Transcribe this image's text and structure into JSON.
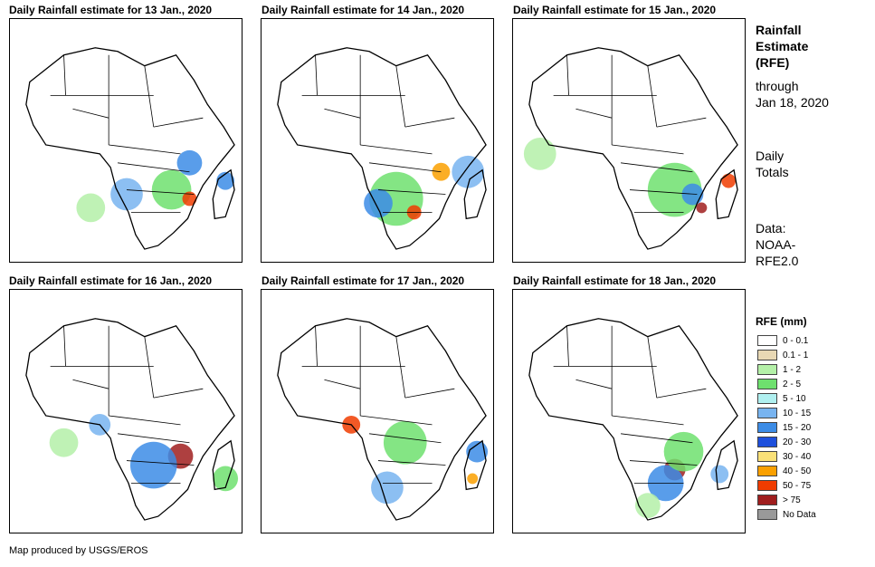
{
  "panels": [
    {
      "title": "Daily Rainfall estimate for 13 Jan., 2020"
    },
    {
      "title": "Daily Rainfall estimate for 14 Jan., 2020"
    },
    {
      "title": "Daily Rainfall estimate for 15 Jan., 2020"
    },
    {
      "title": "Daily Rainfall estimate for 16 Jan., 2020"
    },
    {
      "title": "Daily Rainfall estimate for 17 Jan., 2020"
    },
    {
      "title": "Daily Rainfall estimate for 18 Jan., 2020"
    }
  ],
  "sidebar": {
    "heading_line1": "Rainfall",
    "heading_line2": "Estimate",
    "heading_line3": "(RFE)",
    "through_line1": "through",
    "through_line2": "Jan 18, 2020",
    "totals_line1": "Daily",
    "totals_line2": "Totals",
    "data_line1": "Data:",
    "data_line2": "NOAA-",
    "data_line3": "RFE2.0"
  },
  "legend": {
    "title": "RFE (mm)",
    "items": [
      {
        "label": "0 - 0.1",
        "color": "#ffffff"
      },
      {
        "label": "0.1 - 1",
        "color": "#e8d8b4"
      },
      {
        "label": "1 - 2",
        "color": "#b4f0a8"
      },
      {
        "label": "2 - 5",
        "color": "#6ee06e"
      },
      {
        "label": "5 - 10",
        "color": "#b0f0f0"
      },
      {
        "label": "10 - 15",
        "color": "#78b4f0"
      },
      {
        "label": "15 - 20",
        "color": "#3c8ce6"
      },
      {
        "label": "20 - 30",
        "color": "#1e50dc"
      },
      {
        "label": "30 - 40",
        "color": "#fae178"
      },
      {
        "label": "40 - 50",
        "color": "#faa000"
      },
      {
        "label": "50 - 75",
        "color": "#f03c00"
      },
      {
        "label": "> 75",
        "color": "#a01e1e"
      },
      {
        "label": "No Data",
        "color": "#999999"
      }
    ]
  },
  "footer": "Map produced by USGS/EROS"
}
